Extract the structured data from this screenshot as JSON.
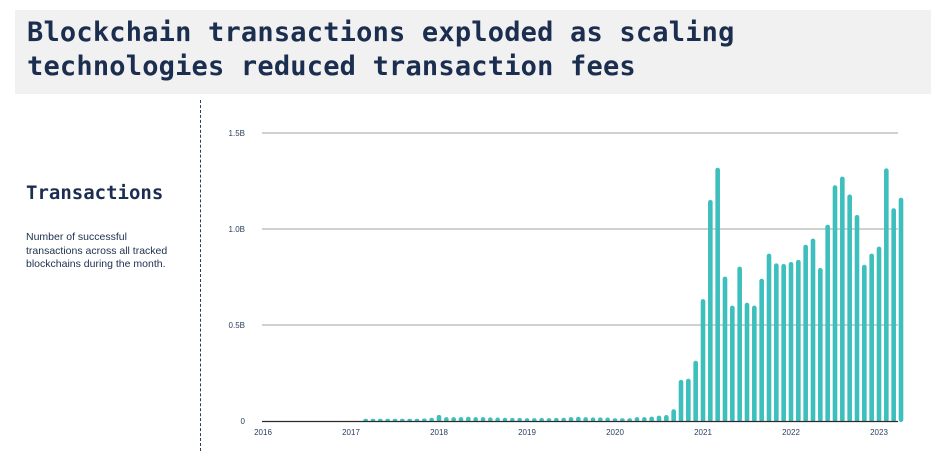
{
  "header": {
    "title_line1": "Blockchain transactions exploded as scaling",
    "title_line2": "technologies reduced transaction fees"
  },
  "sidebar": {
    "heading": "Transactions",
    "description": "Number of successful transactions across all tracked blockchains during the month."
  },
  "colors": {
    "bar": "#3dbfbd",
    "text": "#1b2e4f",
    "grid": "#a0a0a0",
    "title_bg": "#f1f1f1"
  },
  "chart_data": {
    "type": "bar",
    "title": "Transactions",
    "xlabel": "",
    "ylabel": "Transactions",
    "ylim": [
      0,
      1.5
    ],
    "y_unit": "billions",
    "y_ticks": [
      {
        "v": 0,
        "label": "0"
      },
      {
        "v": 0.5,
        "label": "0.5B"
      },
      {
        "v": 1.0,
        "label": "1.0B"
      },
      {
        "v": 1.5,
        "label": "1.5B"
      }
    ],
    "x_ticks": [
      "2016",
      "2017",
      "2018",
      "2019",
      "2020",
      "2021",
      "2022",
      "2023"
    ],
    "x_range": [
      "2016-01",
      "2023-03"
    ],
    "grid": true,
    "start_month": "2017-03",
    "values": [
      0.003,
      0.004,
      0.005,
      0.008,
      0.009,
      0.008,
      0.009,
      0.01,
      0.013,
      0.017,
      0.032,
      0.02,
      0.02,
      0.02,
      0.022,
      0.02,
      0.02,
      0.019,
      0.018,
      0.017,
      0.016,
      0.016,
      0.015,
      0.015,
      0.016,
      0.015,
      0.016,
      0.017,
      0.02,
      0.022,
      0.02,
      0.019,
      0.019,
      0.018,
      0.014,
      0.014,
      0.014,
      0.02,
      0.02,
      0.023,
      0.028,
      0.031,
      0.061,
      0.214,
      0.22,
      0.314,
      0.635,
      1.151,
      1.319,
      0.752,
      0.601,
      0.804,
      0.616,
      0.601,
      0.741,
      0.872,
      0.821,
      0.818,
      0.828,
      0.839,
      0.918,
      0.95,
      0.797,
      1.022,
      1.228,
      1.273,
      1.18,
      1.073,
      0.814,
      0.872,
      0.908,
      1.316,
      1.108,
      1.163
    ]
  }
}
